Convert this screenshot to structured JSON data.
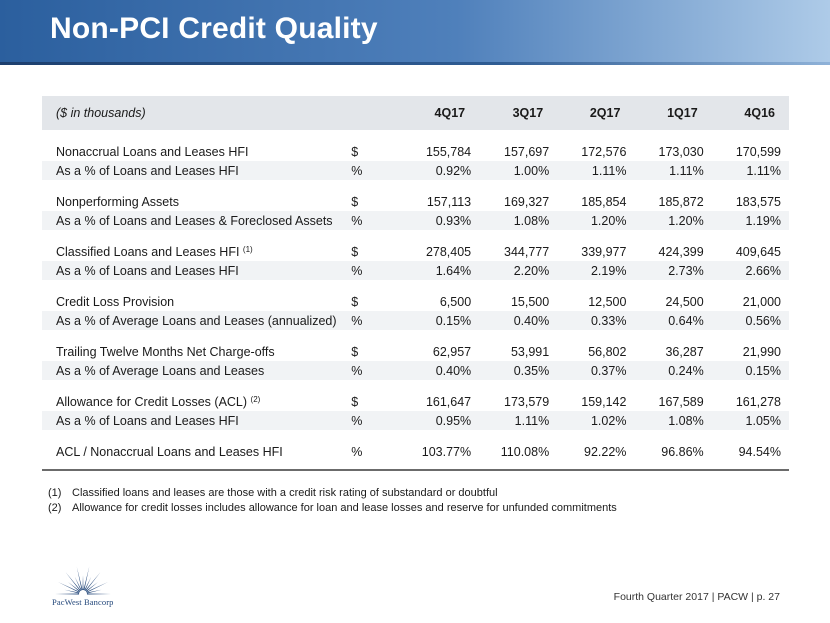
{
  "header": {
    "title": "Non-PCI Credit Quality"
  },
  "table": {
    "unit_label": "($ in thousands)",
    "columns": [
      "4Q17",
      "3Q17",
      "2Q17",
      "1Q17",
      "4Q16"
    ],
    "groups": [
      {
        "main": {
          "label": "Nonaccrual Loans and Leases HFI",
          "sup": "",
          "symbol": "$",
          "values": [
            "155,784",
            "157,697",
            "172,576",
            "173,030",
            "170,599"
          ]
        },
        "pct": {
          "label": "As a % of Loans and Leases HFI",
          "symbol": "%",
          "values": [
            "0.92%",
            "1.00%",
            "1.11%",
            "1.11%",
            "1.11%"
          ]
        }
      },
      {
        "main": {
          "label": "Nonperforming Assets",
          "sup": "",
          "symbol": "$",
          "values": [
            "157,113",
            "169,327",
            "185,854",
            "185,872",
            "183,575"
          ]
        },
        "pct": {
          "label": "As a % of Loans and Leases & Foreclosed Assets",
          "symbol": "%",
          "values": [
            "0.93%",
            "1.08%",
            "1.20%",
            "1.20%",
            "1.19%"
          ]
        }
      },
      {
        "main": {
          "label": "Classified Loans and Leases HFI",
          "sup": "(1)",
          "symbol": "$",
          "values": [
            "278,405",
            "344,777",
            "339,977",
            "424,399",
            "409,645"
          ]
        },
        "pct": {
          "label": "As a % of Loans and Leases HFI",
          "symbol": "%",
          "values": [
            "1.64%",
            "2.20%",
            "2.19%",
            "2.73%",
            "2.66%"
          ]
        }
      },
      {
        "main": {
          "label": "Credit Loss Provision",
          "sup": "",
          "symbol": "$",
          "values": [
            "6,500",
            "15,500",
            "12,500",
            "24,500",
            "21,000"
          ]
        },
        "pct": {
          "label": "As a % of Average Loans and Leases (annualized)",
          "symbol": "%",
          "values": [
            "0.15%",
            "0.40%",
            "0.33%",
            "0.64%",
            "0.56%"
          ]
        }
      },
      {
        "main": {
          "label": "Trailing Twelve Months Net Charge-offs",
          "sup": "",
          "symbol": "$",
          "values": [
            "62,957",
            "53,991",
            "56,802",
            "36,287",
            "21,990"
          ]
        },
        "pct": {
          "label": "As a % of Average Loans and Leases",
          "symbol": "%",
          "values": [
            "0.40%",
            "0.35%",
            "0.37%",
            "0.24%",
            "0.15%"
          ]
        }
      },
      {
        "main": {
          "label": "Allowance for Credit Losses (ACL)",
          "sup": "(2)",
          "symbol": "$",
          "values": [
            "161,647",
            "173,579",
            "159,142",
            "167,589",
            "161,278"
          ]
        },
        "pct": {
          "label": "As a % of Loans and Leases HFI",
          "symbol": "%",
          "values": [
            "0.95%",
            "1.11%",
            "1.02%",
            "1.08%",
            "1.05%"
          ]
        }
      }
    ],
    "final_row": {
      "label": "ACL / Nonaccrual Loans and Leases HFI",
      "symbol": "%",
      "values": [
        "103.77%",
        "110.08%",
        "92.22%",
        "96.86%",
        "94.54%"
      ]
    }
  },
  "footnotes": [
    {
      "num": "(1)",
      "text": "Classified loans and leases are those with a credit risk rating of substandard or doubtful"
    },
    {
      "num": "(2)",
      "text": "Allowance for credit losses includes allowance for loan and lease losses and reserve for unfunded commitments"
    }
  ],
  "logo": {
    "text": "PacWest Bancorp",
    "color": "#23477a"
  },
  "footer": {
    "text": "Fourth Quarter 2017 | PACW | p. 27"
  }
}
